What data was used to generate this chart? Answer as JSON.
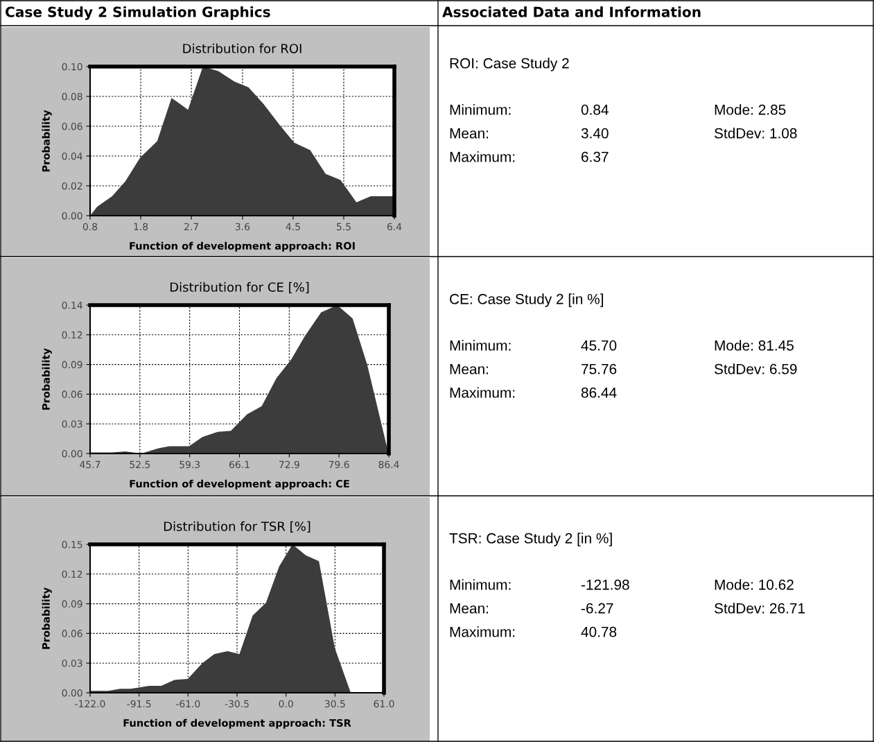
{
  "chart_data": [
    {
      "type": "other",
      "annotations": [
        "Case Study 2 Simulation Graphics",
        "Associated Data and Information"
      ]
    },
    {
      "type": "area",
      "title": "Distribution for ROI",
      "xlabel": "Function of development approach: ROI",
      "ylabel": "Probability",
      "color": "#3c3c3c",
      "grid": true,
      "x": [
        0.84,
        0.97,
        1.24,
        1.48,
        1.75,
        2.06,
        2.32,
        2.62,
        2.89,
        3.17,
        3.46,
        3.72,
        3.99,
        4.28,
        4.55,
        4.84,
        5.12,
        5.39,
        5.68,
        5.94,
        6.37
      ],
      "values": [
        0,
        0.006,
        0.013,
        0.023,
        0.039,
        0.05,
        0.079,
        0.071,
        0.1,
        0.097,
        0.09,
        0.086,
        0.075,
        0.061,
        0.049,
        0.044,
        0.028,
        0.024,
        0.009,
        0.013,
        0.013
      ],
      "xlim": [
        0.84,
        6.37
      ],
      "ylim": [
        0,
        0.1
      ],
      "xticks": [
        {
          "value": 0.84,
          "label": "0.8"
        },
        {
          "value": 1.76,
          "label": "1.8"
        },
        {
          "value": 2.68,
          "label": "2.7"
        },
        {
          "value": 3.61,
          "label": "3.6"
        },
        {
          "value": 4.53,
          "label": "4.5"
        },
        {
          "value": 5.45,
          "label": "5.5"
        },
        {
          "value": 6.37,
          "label": "6.4"
        }
      ],
      "yticks": [
        {
          "value": 0,
          "label": "0.00"
        },
        {
          "value": 0.02,
          "label": "0.02"
        },
        {
          "value": 0.04,
          "label": "0.04"
        },
        {
          "value": 0.06,
          "label": "0.06"
        },
        {
          "value": 0.08,
          "label": "0.08"
        },
        {
          "value": 0.1,
          "label": "0.10"
        }
      ]
    },
    {
      "type": "other",
      "title": "ROI: Case Study 2",
      "annotations": [
        "Minimum:",
        "0.84",
        "Mode: 2.85",
        "Mean:",
        "3.40",
        "StdDev: 1.08",
        "Maximum:",
        "6.37"
      ]
    },
    {
      "type": "area",
      "title": "Distribution for CE [%]",
      "xlabel": "Function of development approach: CE",
      "ylabel": "Probability",
      "color": "#3c3c3c",
      "grid": true,
      "x": [
        45.7,
        48.7,
        50.5,
        52.7,
        55.0,
        56.5,
        59.2,
        61.0,
        63.1,
        64.9,
        67.1,
        69.1,
        71.1,
        73.1,
        75.0,
        77.2,
        79.4,
        81.5,
        83.5,
        86.4
      ],
      "values": [
        0.001,
        0.001,
        0.002,
        0,
        0.005,
        0.007,
        0.007,
        0.016,
        0.021,
        0.022,
        0.038,
        0.046,
        0.073,
        0.091,
        0.114,
        0.137,
        0.144,
        0.131,
        0.086,
        0
      ],
      "xlim": [
        45.7,
        86.44
      ],
      "ylim": [
        0,
        0.144
      ],
      "xticks": [
        {
          "value": 45.7,
          "label": "45.7"
        },
        {
          "value": 52.49,
          "label": "52.5"
        },
        {
          "value": 59.28,
          "label": "59.3"
        },
        {
          "value": 66.07,
          "label": "66.1"
        },
        {
          "value": 72.86,
          "label": "72.9"
        },
        {
          "value": 79.64,
          "label": "79.6"
        },
        {
          "value": 86.44,
          "label": "86.4"
        }
      ],
      "yticks": [
        {
          "value": 0,
          "label": "0.00"
        },
        {
          "value": 0.0288,
          "label": "0.03"
        },
        {
          "value": 0.0576,
          "label": "0.06"
        },
        {
          "value": 0.0864,
          "label": "0.09"
        },
        {
          "value": 0.1152,
          "label": "0.12"
        },
        {
          "value": 0.144,
          "label": "0.14"
        }
      ]
    },
    {
      "type": "other",
      "title": "CE: Case Study 2 [in %]",
      "annotations": [
        "Minimum:",
        "45.70",
        "Mode: 81.45",
        "Mean:",
        "75.76",
        "StdDev: 6.59",
        "Maximum:",
        "86.44"
      ]
    },
    {
      "type": "area",
      "title": "Distribution for TSR [%]",
      "xlabel": "Function of development approach: TSR",
      "ylabel": "Probability",
      "color": "#3c3c3c",
      "grid": true,
      "x": [
        -122,
        -110.8,
        -103.3,
        -96.7,
        -85.2,
        -77.7,
        -69.5,
        -61.2,
        -52.1,
        -44.7,
        -36.4,
        -29.0,
        -20.8,
        -12.5,
        -4.2,
        4.0,
        12.3,
        20.5,
        30.4,
        40.3,
        61.0
      ],
      "values": [
        0.002,
        0.002,
        0.004,
        0.004,
        0.007,
        0.007,
        0.013,
        0.014,
        0.03,
        0.039,
        0.042,
        0.039,
        0.078,
        0.091,
        0.128,
        0.15,
        0.139,
        0.133,
        0.045,
        0,
        0
      ],
      "xlim": [
        -122,
        61
      ],
      "ylim": [
        0,
        0.15
      ],
      "xticks": [
        {
          "value": -122,
          "label": "-122.0"
        },
        {
          "value": -91.5,
          "label": "-91.5"
        },
        {
          "value": -61,
          "label": "-61.0"
        },
        {
          "value": -30.5,
          "label": "-30.5"
        },
        {
          "value": 0,
          "label": "0.0"
        },
        {
          "value": 30.5,
          "label": "30.5"
        },
        {
          "value": 61,
          "label": "61.0"
        }
      ],
      "yticks": [
        {
          "value": 0,
          "label": "0.00"
        },
        {
          "value": 0.03,
          "label": "0.03"
        },
        {
          "value": 0.06,
          "label": "0.06"
        },
        {
          "value": 0.09,
          "label": "0.09"
        },
        {
          "value": 0.12,
          "label": "0.12"
        },
        {
          "value": 0.15,
          "label": "0.15"
        }
      ]
    },
    {
      "type": "other",
      "title": "TSR: Case Study 2 [in %]",
      "annotations": [
        "Minimum:",
        "-121.98",
        "Mode: 10.62",
        "Mean:",
        "-6.27",
        "StdDev: 26.71",
        "Maximum:",
        "40.78"
      ]
    }
  ]
}
